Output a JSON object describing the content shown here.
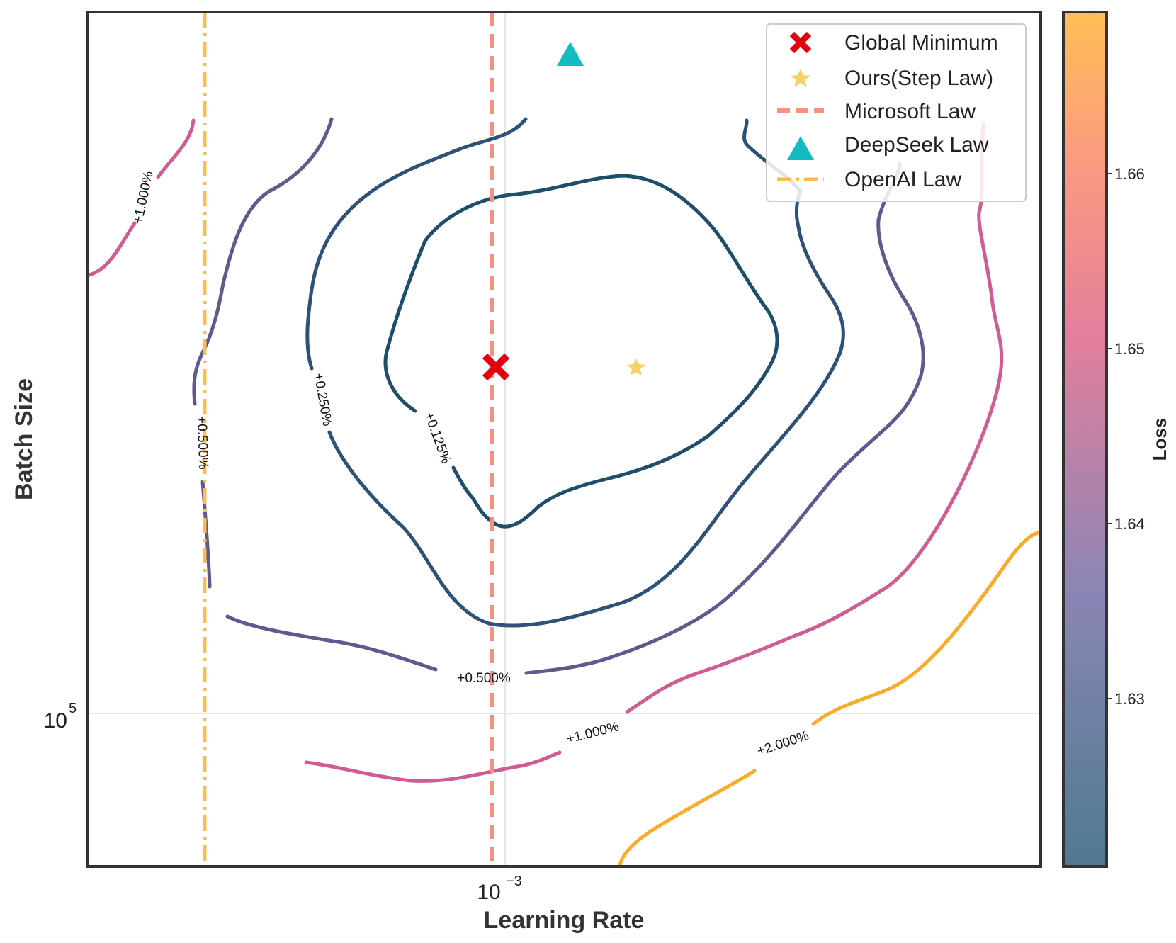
{
  "chart_data": {
    "type": "contour",
    "xlabel": "Learning Rate",
    "ylabel": "Batch Size",
    "x_scale": "log",
    "y_scale": "log",
    "x_tick_label": {
      "base": "10",
      "exp": "−3"
    },
    "y_tick_label": {
      "base": "10",
      "exp": "5"
    },
    "grid": true,
    "colorbar": {
      "label": "Loss",
      "ticks": [
        "1.63",
        "1.64",
        "1.65",
        "1.66"
      ],
      "colors": [
        "#4f7a8f",
        "#8a86b5",
        "#e37f9c",
        "#fa9a82",
        "#ffbe55"
      ]
    },
    "contours": [
      {
        "label": "+0.125%",
        "color": "#1f4e6b"
      },
      {
        "label": "+0.250%",
        "color": "#2e5178"
      },
      {
        "label": "+0.500%",
        "color": "#5e5a8e"
      },
      {
        "label": "+1.000%",
        "color": "#cf5c92"
      },
      {
        "label": "+2.000%",
        "color": "#f9ac2b"
      }
    ],
    "markers": [
      {
        "name": "Global Minimum",
        "shape": "x",
        "color": "#e3000f"
      },
      {
        "name": "Ours(Step Law)",
        "shape": "star",
        "color": "#f6d06c"
      },
      {
        "name": "DeepSeek Law",
        "shape": "triangle",
        "color": "#13bcc2"
      }
    ],
    "lines": [
      {
        "name": "Microsoft Law",
        "style": "dashed",
        "color": "#f69180"
      },
      {
        "name": "OpenAI Law",
        "style": "dashdot",
        "color": "#fcbd4c"
      }
    ],
    "legend": {
      "position": "top-right",
      "entries": [
        "Global Minimum",
        "Ours(Step Law)",
        "Microsoft Law",
        "DeepSeek Law",
        "OpenAI Law"
      ]
    }
  }
}
